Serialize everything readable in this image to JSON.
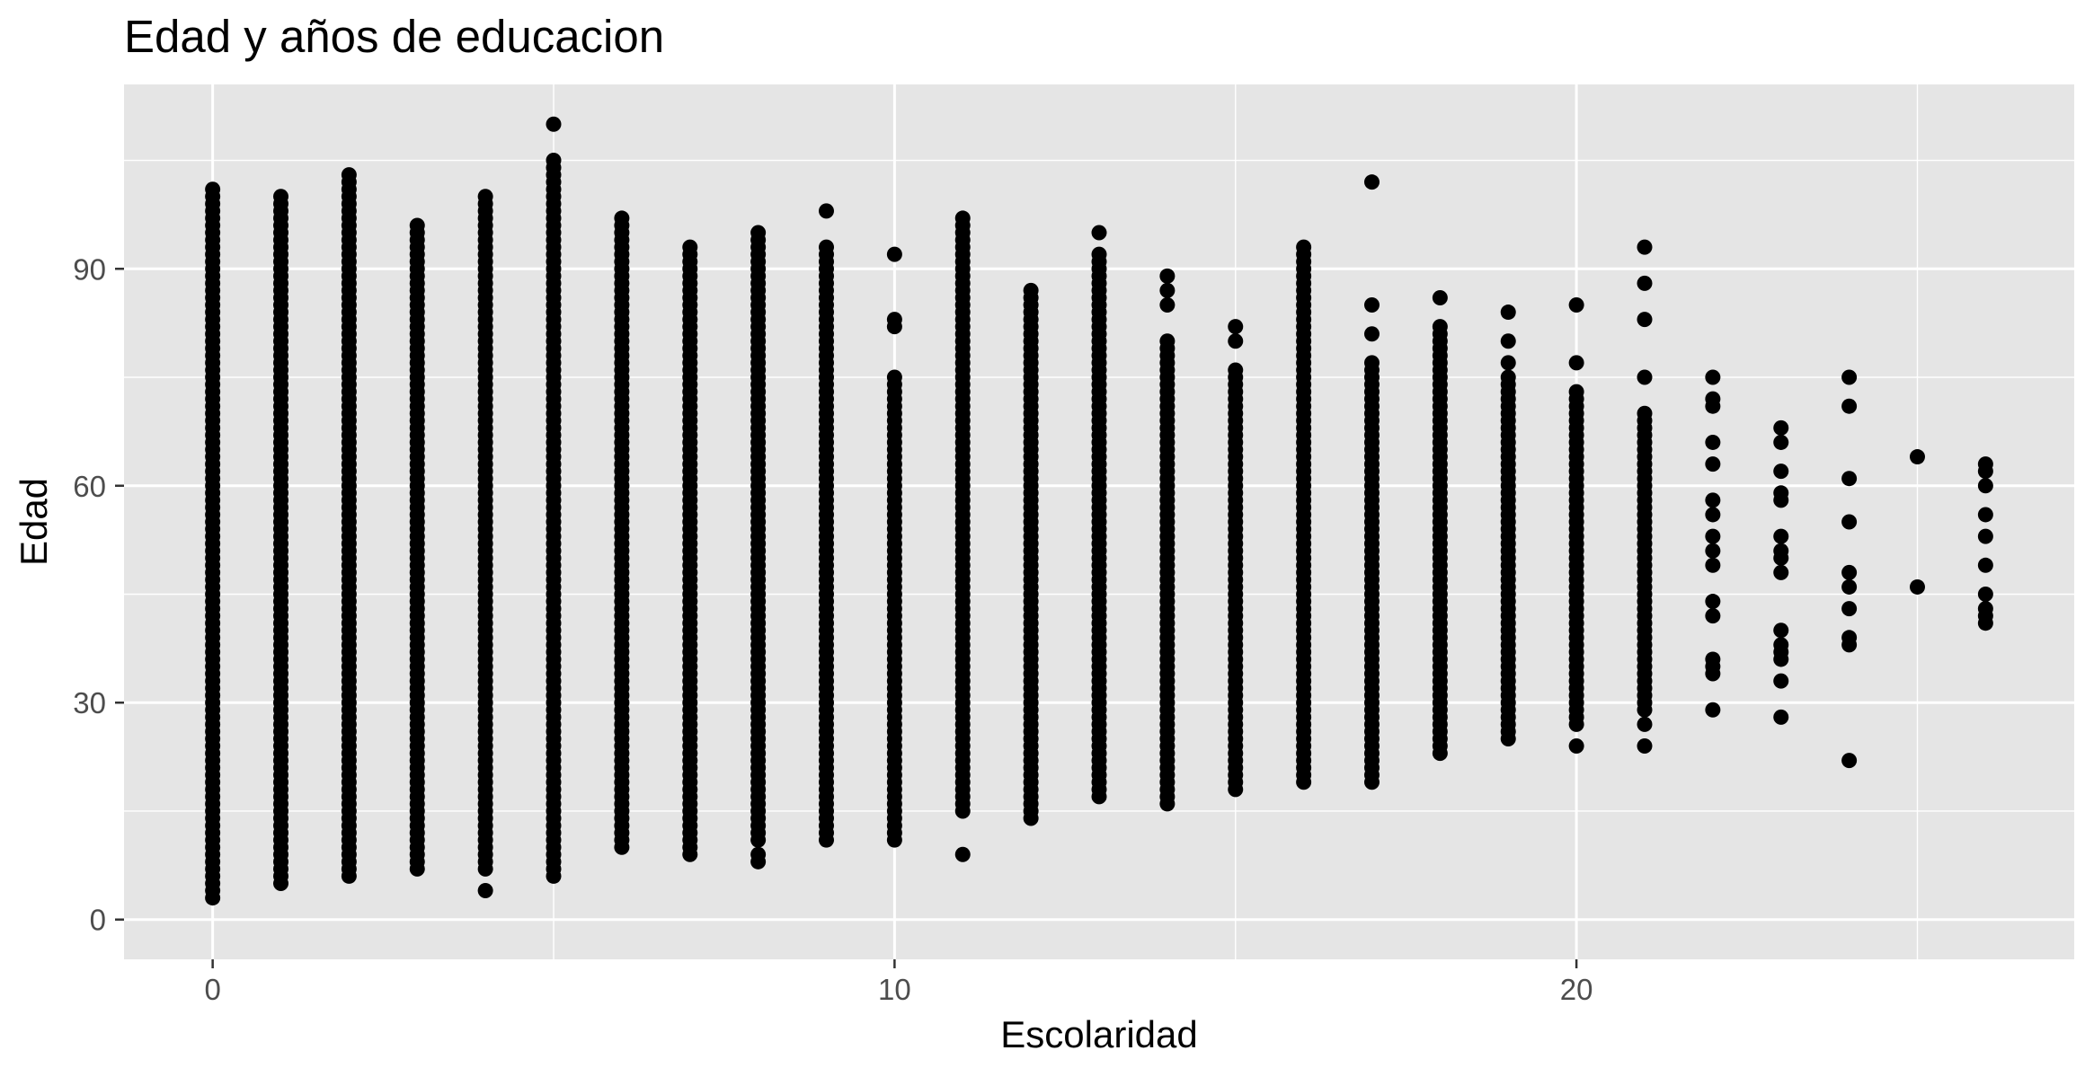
{
  "chart_data": {
    "type": "scatter",
    "title": "Edad y años de educacion",
    "xlabel": "Escolaridad",
    "ylabel": "Edad",
    "xlim": [
      -1.3,
      27.3
    ],
    "ylim": [
      -5.5,
      115.5
    ],
    "x_ticks": [
      0,
      10,
      20
    ],
    "y_ticks": [
      0,
      30,
      60,
      90
    ],
    "grid": true,
    "legend": "none",
    "colors": {
      "panel": "#e5e5e5",
      "grid_major": "#ffffff",
      "points": "#000000",
      "tick_text": "#4d4d4d"
    },
    "columns": [
      {
        "x": 0,
        "min": 3,
        "max": 101,
        "extra": []
      },
      {
        "x": 1,
        "min": 5,
        "max": 100,
        "extra": []
      },
      {
        "x": 2,
        "min": 6,
        "max": 103,
        "extra": []
      },
      {
        "x": 3,
        "min": 7,
        "max": 96,
        "extra": []
      },
      {
        "x": 4,
        "min": 7,
        "max": 100,
        "extra": [
          4
        ]
      },
      {
        "x": 5,
        "min": 6,
        "max": 105,
        "extra": [
          110
        ]
      },
      {
        "x": 6,
        "min": 10,
        "max": 97,
        "extra": []
      },
      {
        "x": 7,
        "min": 9,
        "max": 93,
        "extra": []
      },
      {
        "x": 8,
        "min": 11,
        "max": 95,
        "extra": [
          9,
          8
        ]
      },
      {
        "x": 9,
        "min": 11,
        "max": 93,
        "extra": [
          98
        ]
      },
      {
        "x": 10,
        "min": 11,
        "max": 75,
        "extra": [
          82,
          83,
          92
        ]
      },
      {
        "x": 11,
        "min": 15,
        "max": 97,
        "extra": [
          9
        ]
      },
      {
        "x": 12,
        "min": 14,
        "max": 87,
        "extra": []
      },
      {
        "x": 13,
        "min": 17,
        "max": 92,
        "extra": [
          95
        ]
      },
      {
        "x": 14,
        "min": 16,
        "max": 80,
        "extra": [
          85,
          87,
          89
        ]
      },
      {
        "x": 15,
        "min": 18,
        "max": 76,
        "extra": [
          80,
          82
        ]
      },
      {
        "x": 16,
        "min": 19,
        "max": 93,
        "extra": []
      },
      {
        "x": 17,
        "min": 19,
        "max": 77,
        "extra": [
          81,
          85,
          102
        ]
      },
      {
        "x": 18,
        "min": 23,
        "max": 82,
        "extra": [
          86
        ]
      },
      {
        "x": 19,
        "min": 25,
        "max": 75,
        "extra": [
          77,
          80,
          84
        ]
      },
      {
        "x": 20,
        "min": 27,
        "max": 73,
        "extra": [
          24,
          77,
          85
        ]
      },
      {
        "x": 21,
        "min": 29,
        "max": 70,
        "extra": [
          24,
          27,
          75,
          83,
          88,
          93
        ]
      }
    ],
    "points": [
      {
        "x": 22,
        "y": 75
      },
      {
        "x": 22,
        "y": 72
      },
      {
        "x": 22,
        "y": 71
      },
      {
        "x": 22,
        "y": 66
      },
      {
        "x": 22,
        "y": 63
      },
      {
        "x": 22,
        "y": 58
      },
      {
        "x": 22,
        "y": 56
      },
      {
        "x": 22,
        "y": 53
      },
      {
        "x": 22,
        "y": 51
      },
      {
        "x": 22,
        "y": 49
      },
      {
        "x": 22,
        "y": 44
      },
      {
        "x": 22,
        "y": 42
      },
      {
        "x": 22,
        "y": 36
      },
      {
        "x": 22,
        "y": 35
      },
      {
        "x": 22,
        "y": 34
      },
      {
        "x": 22,
        "y": 29
      },
      {
        "x": 23,
        "y": 68
      },
      {
        "x": 23,
        "y": 66
      },
      {
        "x": 23,
        "y": 62
      },
      {
        "x": 23,
        "y": 59
      },
      {
        "x": 23,
        "y": 58
      },
      {
        "x": 23,
        "y": 53
      },
      {
        "x": 23,
        "y": 51
      },
      {
        "x": 23,
        "y": 50
      },
      {
        "x": 23,
        "y": 48
      },
      {
        "x": 23,
        "y": 40
      },
      {
        "x": 23,
        "y": 38
      },
      {
        "x": 23,
        "y": 37
      },
      {
        "x": 23,
        "y": 36
      },
      {
        "x": 23,
        "y": 33
      },
      {
        "x": 23,
        "y": 28
      },
      {
        "x": 24,
        "y": 75
      },
      {
        "x": 24,
        "y": 71
      },
      {
        "x": 24,
        "y": 61
      },
      {
        "x": 24,
        "y": 55
      },
      {
        "x": 24,
        "y": 48
      },
      {
        "x": 24,
        "y": 46
      },
      {
        "x": 24,
        "y": 43
      },
      {
        "x": 24,
        "y": 39
      },
      {
        "x": 24,
        "y": 38
      },
      {
        "x": 24,
        "y": 22
      },
      {
        "x": 25,
        "y": 64
      },
      {
        "x": 25,
        "y": 46
      },
      {
        "x": 26,
        "y": 63
      },
      {
        "x": 26,
        "y": 62
      },
      {
        "x": 26,
        "y": 60
      },
      {
        "x": 26,
        "y": 56
      },
      {
        "x": 26,
        "y": 53
      },
      {
        "x": 26,
        "y": 49
      },
      {
        "x": 26,
        "y": 45
      },
      {
        "x": 26,
        "y": 43
      },
      {
        "x": 26,
        "y": 42
      },
      {
        "x": 26,
        "y": 41
      }
    ]
  }
}
